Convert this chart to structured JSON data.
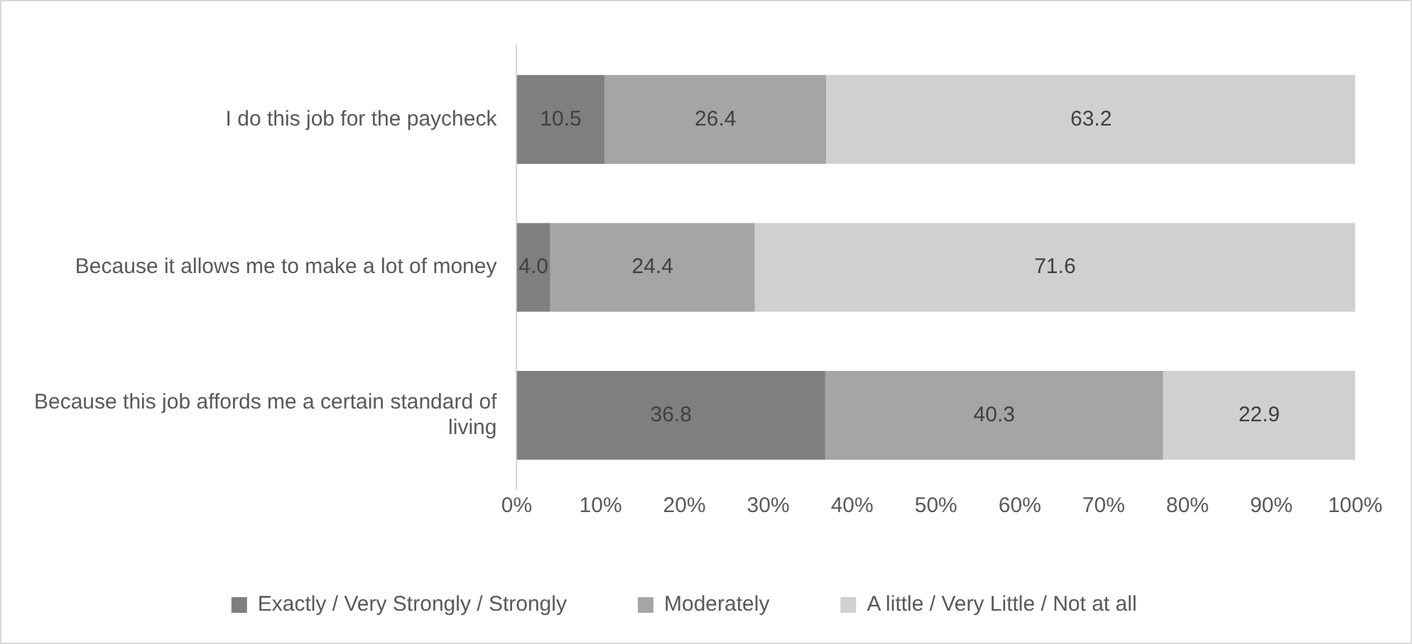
{
  "chart_data": {
    "type": "bar",
    "orientation": "horizontal",
    "stacked": true,
    "categories": [
      "I do this job for the paycheck",
      "Because it allows me to make a lot of money",
      "Because this job affords me a certain standard of living"
    ],
    "series": [
      {
        "name": "Exactly / Very Strongly / Strongly",
        "color": "#7f7f7f",
        "values": [
          10.5,
          4.0,
          36.8
        ],
        "value_labels": [
          "10.5",
          "4.0",
          "36.8"
        ]
      },
      {
        "name": "Moderately",
        "color": "#a5a5a5",
        "values": [
          26.4,
          24.4,
          40.3
        ],
        "value_labels": [
          "26.4",
          "24.4",
          "40.3"
        ]
      },
      {
        "name": "A little / Very Little / Not at all",
        "color": "#d0d0d0",
        "values": [
          63.2,
          71.6,
          22.9
        ],
        "value_labels": [
          "63.2",
          "71.6",
          "22.9"
        ]
      }
    ],
    "xlim": [
      0,
      100
    ],
    "xticks": [
      {
        "value": 0,
        "label": "0%"
      },
      {
        "value": 10,
        "label": "10%"
      },
      {
        "value": 20,
        "label": "20%"
      },
      {
        "value": 30,
        "label": "30%"
      },
      {
        "value": 40,
        "label": "40%"
      },
      {
        "value": 50,
        "label": "50%"
      },
      {
        "value": 60,
        "label": "60%"
      },
      {
        "value": 70,
        "label": "70%"
      },
      {
        "value": 80,
        "label": "80%"
      },
      {
        "value": 90,
        "label": "90%"
      },
      {
        "value": 100,
        "label": "100%"
      }
    ],
    "grid": false,
    "legend": "bottom"
  }
}
